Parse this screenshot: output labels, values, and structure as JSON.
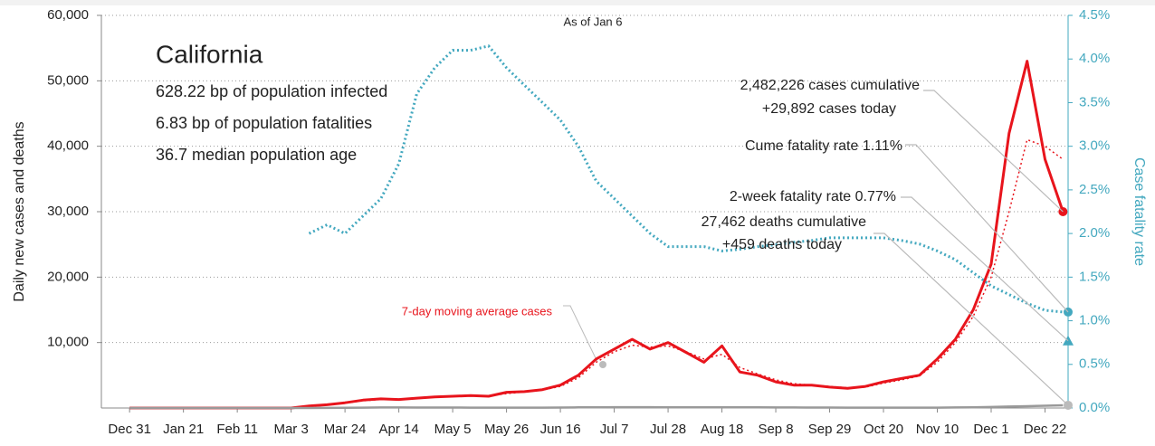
{
  "chart_data": {
    "type": "line",
    "title": "California",
    "subtitle": "As of Jan 6",
    "stats": [
      "628.22 bp of population infected",
      "6.83 bp of population fatalities",
      "36.7 median population age"
    ],
    "ylabel": "Daily new cases and deaths",
    "y2label": "Case fatality rate",
    "avg_label": "7-day moving average cases",
    "annotations": [
      "2,482,226 cases cumulative",
      "+29,892 cases today",
      "Cume fatality rate 1.11%",
      "2-week fatality rate 0.77%",
      "27,462 deaths cumulative",
      "+459 deaths today"
    ],
    "two_week_fatality_rate": 0.77,
    "x": [
      0,
      7,
      14,
      21,
      28,
      35,
      42,
      49,
      56,
      63,
      70,
      77,
      84,
      91,
      98,
      105,
      112,
      119,
      126,
      133,
      140,
      147,
      154,
      161,
      168,
      175,
      182,
      189,
      196,
      203,
      210,
      217,
      224,
      231,
      238,
      245,
      252,
      259,
      266,
      273,
      280,
      287,
      294,
      301,
      308,
      315,
      322,
      329,
      336,
      343,
      350,
      357,
      364
    ],
    "xlim": [
      -11,
      366
    ],
    "xticks": [
      {
        "value": 0,
        "label": "Dec 31"
      },
      {
        "value": 21,
        "label": "Jan 21"
      },
      {
        "value": 42,
        "label": "Feb 11"
      },
      {
        "value": 63,
        "label": "Mar 3"
      },
      {
        "value": 84,
        "label": "Mar 24"
      },
      {
        "value": 105,
        "label": "Apr 14"
      },
      {
        "value": 126,
        "label": "May 5"
      },
      {
        "value": 147,
        "label": "May 26"
      },
      {
        "value": 168,
        "label": "Jun 16"
      },
      {
        "value": 189,
        "label": "Jul 7"
      },
      {
        "value": 210,
        "label": "Jul 28"
      },
      {
        "value": 231,
        "label": "Aug 18"
      },
      {
        "value": 252,
        "label": "Sep 8"
      },
      {
        "value": 273,
        "label": "Sep 29"
      },
      {
        "value": 294,
        "label": "Oct 20"
      },
      {
        "value": 315,
        "label": "Nov 10"
      },
      {
        "value": 336,
        "label": "Dec 1"
      },
      {
        "value": 357,
        "label": "Dec 22"
      }
    ],
    "ylim": [
      0,
      60000
    ],
    "yticks": [
      {
        "value": 10000,
        "label": "10,000"
      },
      {
        "value": 20000,
        "label": "20,000"
      },
      {
        "value": 30000,
        "label": "30,000"
      },
      {
        "value": 40000,
        "label": "40,000"
      },
      {
        "value": 50000,
        "label": "50,000"
      },
      {
        "value": 60000,
        "label": "60,000"
      }
    ],
    "y2lim": [
      0,
      4.5
    ],
    "y2ticks": [
      {
        "value": 0,
        "label": "0.0%"
      },
      {
        "value": 0.5,
        "label": "0.5%"
      },
      {
        "value": 1,
        "label": "1.0%"
      },
      {
        "value": 1.5,
        "label": "1.5%"
      },
      {
        "value": 2,
        "label": "2.0%"
      },
      {
        "value": 2.5,
        "label": "2.5%"
      },
      {
        "value": 3,
        "label": "3.0%"
      },
      {
        "value": 3.5,
        "label": "3.5%"
      },
      {
        "value": 4,
        "label": "4.0%"
      },
      {
        "value": 4.5,
        "label": "4.5%"
      }
    ],
    "grid": true,
    "series": [
      {
        "name": "Daily new cases",
        "color": "#e8141c",
        "style": "solid",
        "width": 3,
        "values": [
          0,
          0,
          0,
          0,
          0,
          0,
          0,
          0,
          0,
          0,
          300,
          500,
          800,
          1200,
          1400,
          1300,
          1500,
          1700,
          1800,
          1900,
          1800,
          2400,
          2500,
          2800,
          3500,
          5000,
          7500,
          9000,
          10500,
          9000,
          10000,
          8500,
          7000,
          9500,
          5500,
          5000,
          4000,
          3500,
          3500,
          3200,
          3000,
          3300,
          4000,
          4500,
          5000,
          7500,
          10500,
          15000,
          22000,
          42000,
          53000,
          38000,
          30000
        ]
      },
      {
        "name": "7-day moving average cases",
        "color": "#e8141c",
        "style": "dotted",
        "width": 1.5,
        "values": [
          0,
          0,
          0,
          0,
          0,
          0,
          0,
          0,
          0,
          0,
          200,
          450,
          750,
          1100,
          1300,
          1350,
          1450,
          1650,
          1750,
          1850,
          1850,
          2200,
          2450,
          2750,
          3300,
          4600,
          7000,
          8600,
          9600,
          9300,
          9500,
          8600,
          7500,
          8200,
          6200,
          5200,
          4300,
          3700,
          3500,
          3300,
          3100,
          3200,
          3800,
          4300,
          4900,
          7000,
          10000,
          14000,
          20000,
          30000,
          41000,
          40000,
          38000
        ]
      },
      {
        "name": "Daily new deaths",
        "color": "#999999",
        "style": "solid",
        "width": 2.5,
        "values": [
          0,
          0,
          0,
          0,
          0,
          0,
          0,
          0,
          0,
          0,
          5,
          20,
          40,
          60,
          80,
          80,
          75,
          70,
          65,
          60,
          60,
          55,
          55,
          60,
          70,
          90,
          110,
          120,
          130,
          120,
          115,
          110,
          105,
          100,
          95,
          90,
          85,
          80,
          70,
          65,
          60,
          55,
          50,
          50,
          55,
          60,
          80,
          100,
          150,
          220,
          280,
          350,
          420
        ]
      },
      {
        "name": "Case fatality rate",
        "color": "#43a8bf",
        "style": "dotted",
        "width": 3,
        "axis": "y2",
        "values": [
          null,
          null,
          null,
          null,
          null,
          null,
          null,
          null,
          null,
          null,
          2.0,
          2.1,
          2.0,
          2.2,
          2.4,
          2.8,
          3.6,
          3.9,
          4.1,
          4.1,
          4.15,
          3.9,
          3.7,
          3.5,
          3.3,
          3.0,
          2.6,
          2.4,
          2.2,
          2.0,
          1.85,
          1.85,
          1.85,
          1.8,
          1.82,
          1.85,
          1.87,
          1.9,
          1.92,
          1.95,
          1.95,
          1.95,
          1.95,
          1.92,
          1.88,
          1.8,
          1.7,
          1.55,
          1.4,
          1.3,
          1.2,
          1.12,
          1.1
        ]
      }
    ]
  }
}
